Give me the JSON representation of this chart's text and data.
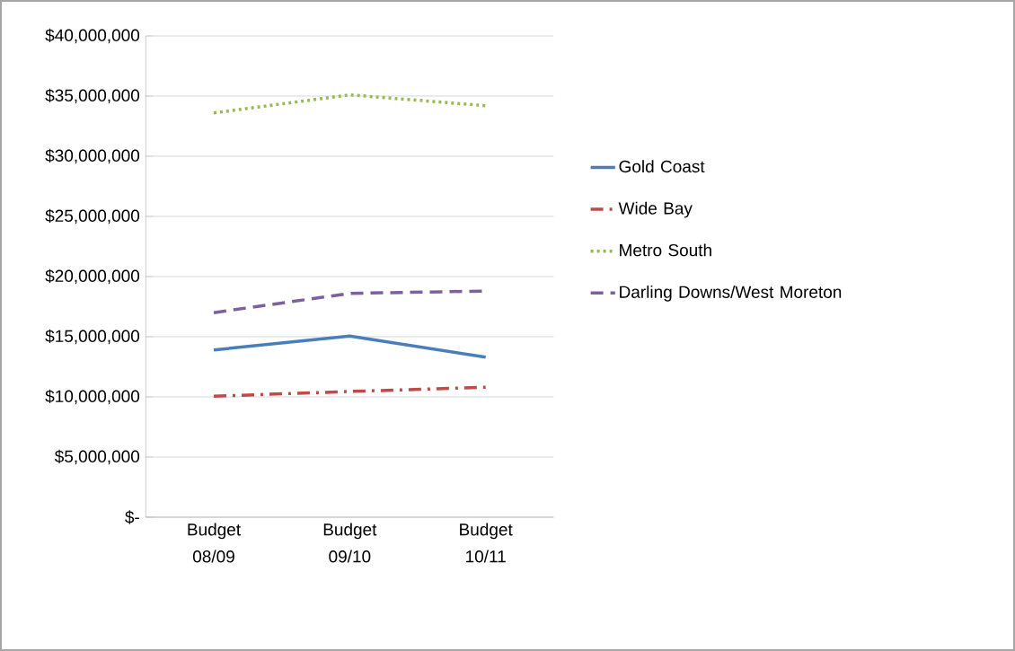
{
  "chart_data": {
    "type": "line",
    "categories": [
      "Budget 08/09",
      "Budget 09/10",
      "Budget 10/11"
    ],
    "series": [
      {
        "name": "Gold Coast",
        "color": "#4a7ebb",
        "line_style": "solid",
        "values": [
          13900000,
          15050000,
          13300000
        ]
      },
      {
        "name": "Wide Bay",
        "color": "#be4b48",
        "line_style": "dashdot",
        "values": [
          10050000,
          10450000,
          10800000
        ]
      },
      {
        "name": "Metro South",
        "color": "#98b954",
        "line_style": "dotted",
        "values": [
          33600000,
          35100000,
          34200000
        ]
      },
      {
        "name": "Darling Downs/West Moreton",
        "color": "#7d60a0",
        "line_style": "dashed",
        "values": [
          17000000,
          18600000,
          18800000
        ]
      }
    ],
    "ylim": [
      0,
      40000000
    ],
    "yticks": [
      {
        "value": 0,
        "label": "$-"
      },
      {
        "value": 5000000,
        "label": "$5,000,000"
      },
      {
        "value": 10000000,
        "label": "$10,000,000"
      },
      {
        "value": 15000000,
        "label": "$15,000,000"
      },
      {
        "value": 20000000,
        "label": "$20,000,000"
      },
      {
        "value": 25000000,
        "label": "$25,000,000"
      },
      {
        "value": 30000000,
        "label": "$30,000,000"
      },
      {
        "value": 35000000,
        "label": "$35,000,000"
      },
      {
        "value": 40000000,
        "label": "$40,000,000"
      }
    ],
    "grid": "y",
    "legend": "right",
    "marker": "none"
  }
}
